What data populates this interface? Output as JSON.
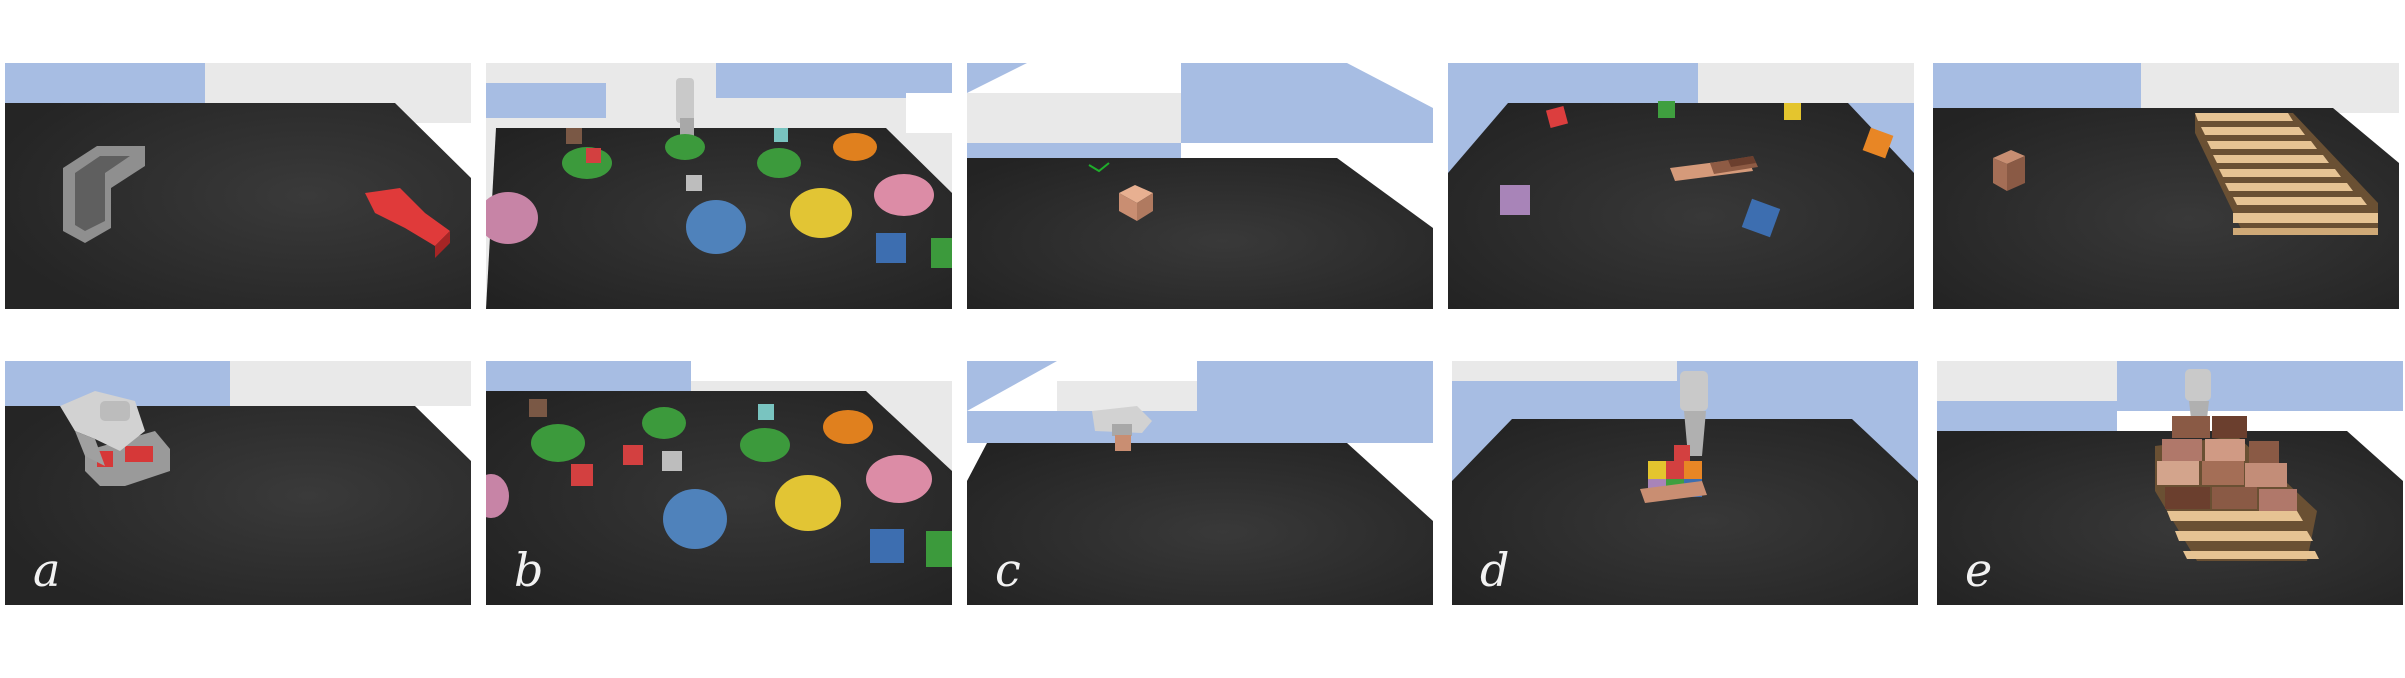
{
  "colors": {
    "sky": "#a7bde3",
    "floor_light": "#e9e9e9",
    "table": "#2f2f2f",
    "robot": "#c9c9c9"
  },
  "labels": [
    "a",
    "b",
    "c",
    "d",
    "e"
  ]
}
